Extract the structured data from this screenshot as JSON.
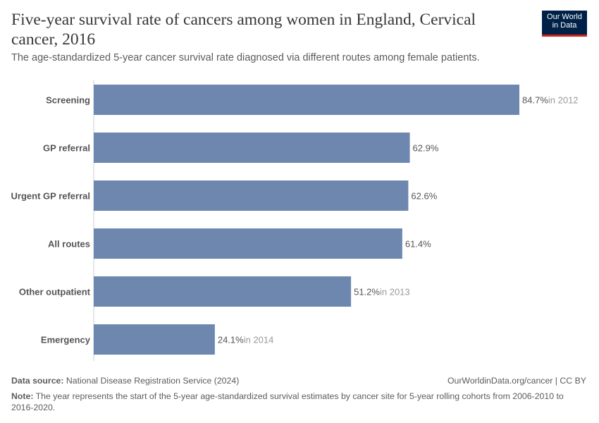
{
  "header": {
    "title": "Five-year survival rate of cancers among women in England, Cervical cancer, 2016",
    "subtitle": "The age-standardized 5-year cancer survival rate diagnosed via different routes among female patients.",
    "logo": "Our World in Data"
  },
  "chart_data": {
    "type": "bar",
    "orientation": "horizontal",
    "categories": [
      "Screening",
      "GP referral",
      "Urgent GP referral",
      "All routes",
      "Other outpatient",
      "Emergency"
    ],
    "values": [
      84.7,
      62.9,
      62.6,
      61.4,
      51.2,
      24.1
    ],
    "value_labels": [
      "84.7%",
      "62.9%",
      "62.6%",
      "61.4%",
      "51.2%",
      "24.1%"
    ],
    "year_notes": [
      "in 2012",
      "",
      "",
      "",
      "in 2013",
      "in 2014"
    ],
    "unit": "%",
    "color": "#6D87AF",
    "xlim": [
      0,
      84.7
    ]
  },
  "footer": {
    "source_label": "Data source:",
    "source": "National Disease Registration Service (2024)",
    "url": "OurWorldinData.org/cancer | CC BY",
    "note_label": "Note:",
    "note": "The year represents the start of the 5-year age-standardized survival estimates by cancer site for 5-year rolling cohorts from 2006-2010 to 2016-2020."
  }
}
